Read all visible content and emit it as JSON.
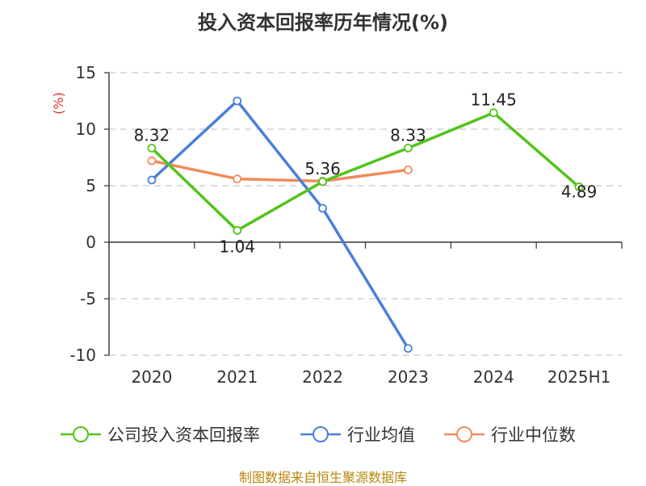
{
  "title": "投入资本回报率历年情况(%)",
  "source": "制图数据来自恒生聚源数据库",
  "chart_data": {
    "type": "line",
    "title": "投入资本回报率历年情况(%)",
    "ylabel": "(%)",
    "xlabel": "",
    "categories": [
      "2020",
      "2021",
      "2022",
      "2023",
      "2024",
      "2025H1"
    ],
    "ylim": [
      -10,
      15
    ],
    "yticks": [
      15,
      10,
      5,
      0,
      -5,
      -10
    ],
    "grid": true,
    "legend_position": "bottom",
    "series": [
      {
        "name": "公司投入资本回报率",
        "color": "#52c41a",
        "values": [
          8.32,
          1.04,
          5.36,
          8.33,
          11.45,
          4.89
        ],
        "labels": [
          "8.32",
          "1.04",
          "5.36",
          "8.33",
          "11.45",
          "4.89"
        ]
      },
      {
        "name": "行业均值",
        "color": "#4a7fdb",
        "values": [
          5.5,
          12.5,
          3.0,
          -9.4,
          null,
          null
        ]
      },
      {
        "name": "行业中位数",
        "color": "#f08c5a",
        "values": [
          7.2,
          5.6,
          5.4,
          6.4,
          null,
          null
        ]
      }
    ]
  }
}
